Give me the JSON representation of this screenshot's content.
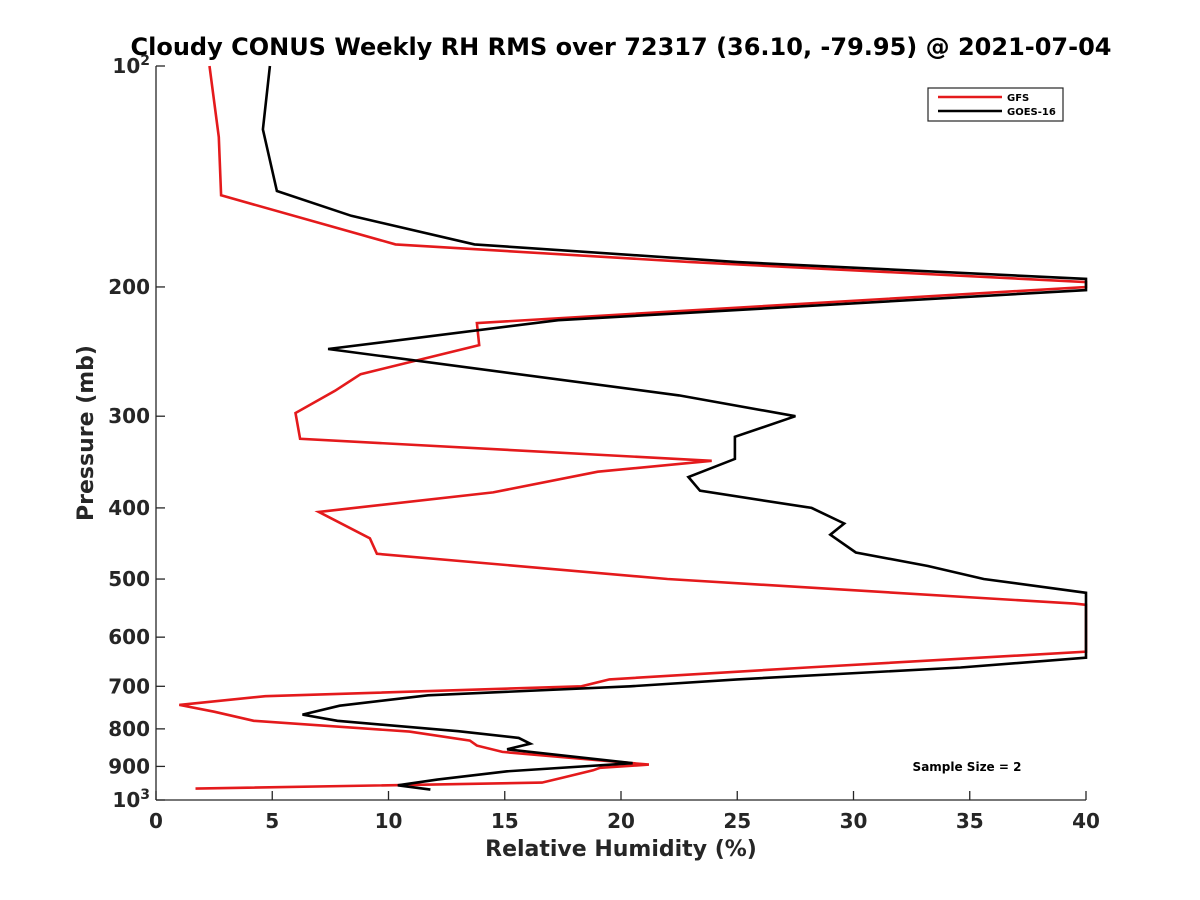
{
  "chart_data": {
    "type": "line",
    "title": "Cloudy CONUS Weekly RH RMS over 72317 (36.10, -79.95) @ 2021-07-04",
    "xlabel": "Relative Humidity (%)",
    "ylabel": "Pressure (mb)",
    "xlim": [
      0,
      40
    ],
    "ylim": [
      100,
      1000
    ],
    "yscale": "log",
    "yreversed": true,
    "grid": false,
    "legend_position": "top-right",
    "x_ticks": [
      0,
      5,
      10,
      15,
      20,
      25,
      30,
      35,
      40
    ],
    "y_ticks": [
      {
        "value": 100,
        "label": "10",
        "sup": "2"
      },
      {
        "value": 200,
        "label": "200",
        "sup": ""
      },
      {
        "value": 300,
        "label": "300",
        "sup": ""
      },
      {
        "value": 400,
        "label": "400",
        "sup": ""
      },
      {
        "value": 500,
        "label": "500",
        "sup": ""
      },
      {
        "value": 600,
        "label": "600",
        "sup": ""
      },
      {
        "value": 700,
        "label": "700",
        "sup": ""
      },
      {
        "value": 800,
        "label": "800",
        "sup": ""
      },
      {
        "value": 900,
        "label": "900",
        "sup": ""
      },
      {
        "value": 1000,
        "label": "10",
        "sup": "3"
      }
    ],
    "series": [
      {
        "name": "GFS",
        "color": "#e41a1c",
        "points": [
          [
            2.3,
            100
          ],
          [
            2.7,
            125
          ],
          [
            2.8,
            150
          ],
          [
            10.3,
            175
          ],
          [
            23.0,
            185
          ],
          [
            40.0,
            197
          ],
          [
            40.0,
            200
          ],
          [
            13.8,
            224
          ],
          [
            13.9,
            240
          ],
          [
            8.8,
            263
          ],
          [
            7.7,
            277
          ],
          [
            6.0,
            297
          ],
          [
            6.2,
            322
          ],
          [
            23.9,
            345
          ],
          [
            19.0,
            357
          ],
          [
            14.5,
            381
          ],
          [
            7.0,
            405
          ],
          [
            9.2,
            440
          ],
          [
            9.5,
            462
          ],
          [
            22.0,
            500
          ],
          [
            39.5,
            540
          ],
          [
            40.0,
            542
          ],
          [
            40.0,
            628
          ],
          [
            28.0,
            660
          ],
          [
            19.5,
            685
          ],
          [
            18.3,
            700
          ],
          [
            4.7,
            722
          ],
          [
            1.0,
            742
          ],
          [
            2.5,
            758
          ],
          [
            4.2,
            780
          ],
          [
            10.9,
            807
          ],
          [
            13.5,
            830
          ],
          [
            13.8,
            843
          ],
          [
            14.9,
            860
          ],
          [
            21.2,
            895
          ],
          [
            19.1,
            904
          ],
          [
            18.8,
            911
          ],
          [
            17.5,
            932
          ],
          [
            16.6,
            947
          ],
          [
            1.7,
            965
          ]
        ]
      },
      {
        "name": "GOES-16",
        "color": "#000000",
        "points": [
          [
            4.9,
            100
          ],
          [
            4.6,
            122
          ],
          [
            5.2,
            148
          ],
          [
            8.4,
            160
          ],
          [
            13.7,
            175
          ],
          [
            25.0,
            185
          ],
          [
            40.0,
            195
          ],
          [
            40.0,
            202
          ],
          [
            17.3,
            222
          ],
          [
            7.4,
            243
          ],
          [
            22.5,
            281
          ],
          [
            27.5,
            300
          ],
          [
            24.9,
            320
          ],
          [
            24.9,
            343
          ],
          [
            22.9,
            363
          ],
          [
            23.4,
            379
          ],
          [
            28.2,
            400
          ],
          [
            29.6,
            420
          ],
          [
            29.0,
            435
          ],
          [
            30.1,
            460
          ],
          [
            33.2,
            480
          ],
          [
            35.6,
            500
          ],
          [
            40.0,
            522
          ],
          [
            40.0,
            640
          ],
          [
            34.6,
            660
          ],
          [
            25.0,
            685
          ],
          [
            20.4,
            700
          ],
          [
            11.7,
            720
          ],
          [
            7.9,
            744
          ],
          [
            6.3,
            765
          ],
          [
            7.8,
            780
          ],
          [
            13.0,
            806
          ],
          [
            15.6,
            823
          ],
          [
            16.1,
            838
          ],
          [
            15.1,
            853
          ],
          [
            20.5,
            891
          ],
          [
            15.1,
            914
          ],
          [
            12.1,
            938
          ],
          [
            10.4,
            955
          ],
          [
            11.8,
            968
          ]
        ]
      }
    ],
    "annotations": [
      "Sample Size = 2"
    ]
  }
}
